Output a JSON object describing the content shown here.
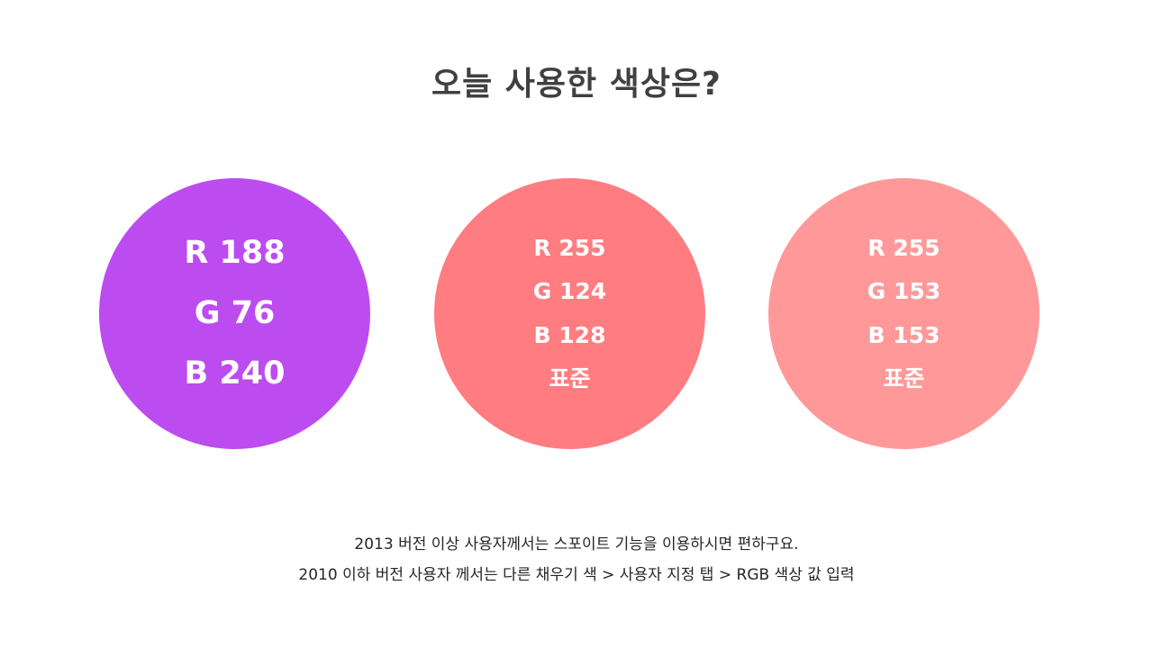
{
  "title": "오늘 사용한 색상은?",
  "swatches": [
    {
      "lines": [
        "R 188",
        "G 76",
        "B 240"
      ],
      "color": "#BC4CF0"
    },
    {
      "lines": [
        "R 255",
        "G 124",
        "B 128",
        "표준"
      ],
      "color": "#FF7C80"
    },
    {
      "lines": [
        "R 255",
        "G 153",
        "B 153",
        "표준"
      ],
      "color": "#FF9999"
    }
  ],
  "notes": [
    "2013 버전 이상 사용자께서는 스포이트 기능을 이용하시면 편하구요.",
    "2010 이하 버전 사용자 께서는 다른 채우기 색 > 사용자 지정 탭 > RGB 색상 값 입력"
  ]
}
